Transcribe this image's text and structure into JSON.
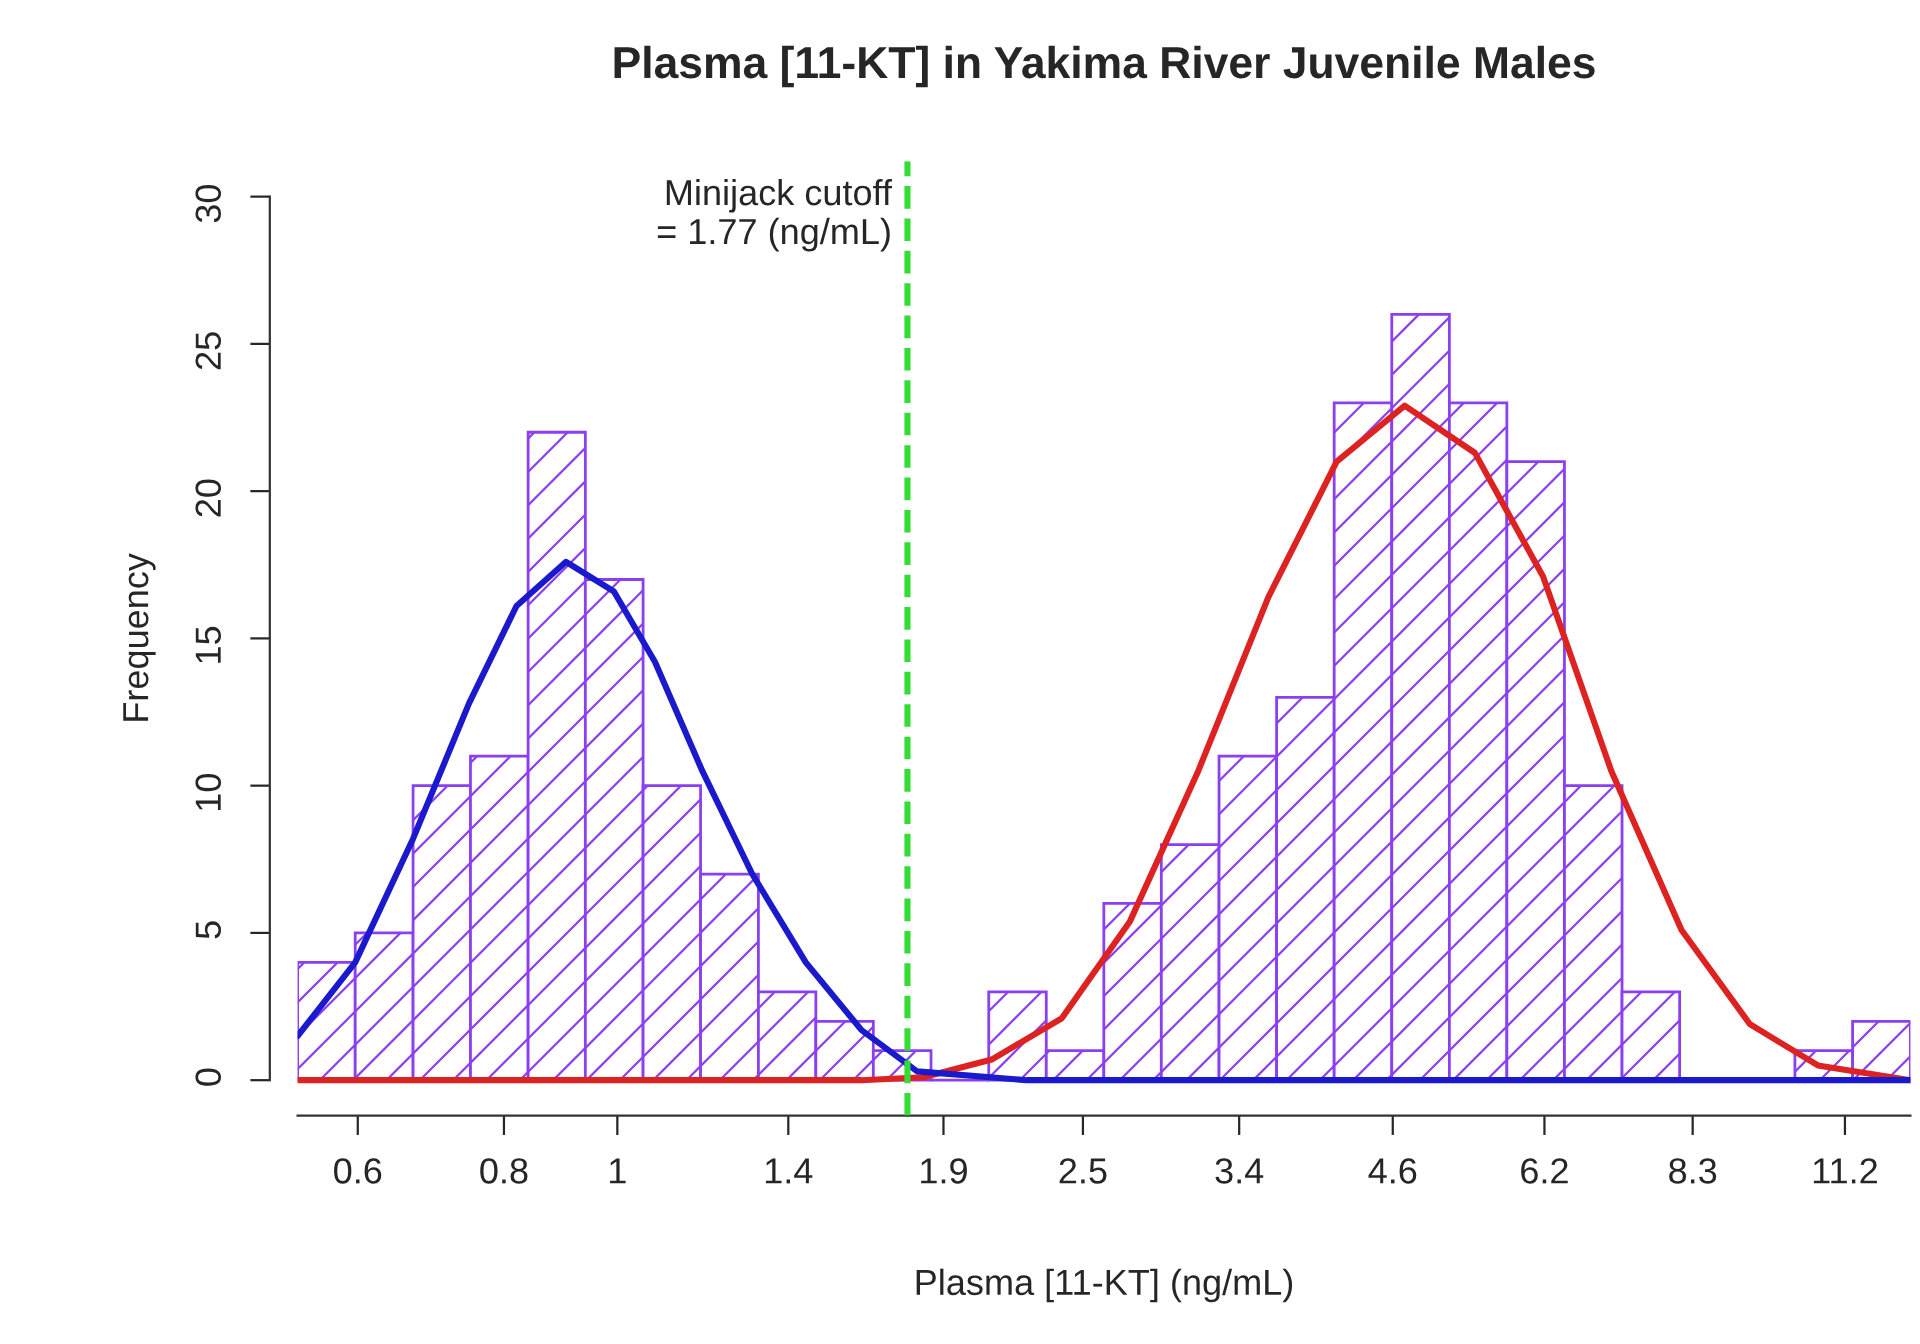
{
  "chart_data": {
    "type": "histogram",
    "title": "Plasma [11-KT] in Yakima River Juvenile Males",
    "xlabel": "Plasma [11-KT] (ng/mL)",
    "ylabel": "Frequency",
    "bins": [
      0.533,
      0.597,
      0.669,
      0.749,
      0.839,
      0.939,
      1.052,
      1.178,
      1.32,
      1.478,
      1.655,
      1.854,
      2.077,
      2.326,
      2.605,
      2.917,
      3.268,
      3.66,
      4.099,
      4.591,
      5.142,
      5.758,
      6.449,
      7.223,
      8.09,
      9.061,
      10.15,
      11.37,
      12.74
    ],
    "values": [
      4,
      5,
      10,
      11,
      22,
      17,
      10,
      7,
      3,
      2,
      1,
      0,
      3,
      1,
      6,
      8,
      11,
      13,
      23,
      26,
      23,
      21,
      10,
      3,
      0,
      0,
      1,
      2
    ],
    "color": "#8b3ff0",
    "series": [
      {
        "type": "line",
        "color": "#dd2222",
        "x": [
          0.533,
          1.617,
          1.827,
          2.089,
          2.398,
          2.743,
          3.137,
          3.601,
          4.119,
          4.71,
          5.407,
          6.183,
          7.072,
          8.12,
          9.29,
          10.62,
          12.74
        ],
        "values": [
          0,
          0,
          0.1,
          0.7,
          2.1,
          5.4,
          10.5,
          16.4,
          21.0,
          22.9,
          21.3,
          17.1,
          10.5,
          5.1,
          1.9,
          0.5,
          0
        ]
      },
      {
        "type": "line",
        "color": "#1a1acc",
        "x": [
          0.533,
          0.597,
          0.669,
          0.747,
          0.82,
          0.904,
          0.993,
          1.077,
          1.182,
          1.304,
          1.449,
          1.617,
          1.804,
          2.238,
          12.74
        ],
        "values": [
          1.5,
          4.0,
          8.2,
          12.8,
          16.1,
          17.6,
          16.6,
          14.2,
          10.5,
          7.0,
          4.0,
          1.7,
          0.3,
          0,
          0
        ]
      }
    ],
    "ref_lines": [
      {
        "axis": "x",
        "value": 1.77,
        "label": "Minijack cutoff\n = 1.77 (ng/mL)",
        "color": "#33dd33",
        "line_style": "dashed"
      }
    ],
    "log": "x",
    "xlim": [
      0.533,
      12.74
    ],
    "ylim": [
      -1.2,
      31.2
    ],
    "xticks": [
      0.6,
      0.8,
      1,
      1.4,
      1.9,
      2.5,
      3.4,
      4.6,
      6.2,
      8.3,
      11.2
    ],
    "yticks": [
      0,
      5,
      10,
      15,
      20,
      25,
      30
    ],
    "grid": false,
    "legend": false
  }
}
